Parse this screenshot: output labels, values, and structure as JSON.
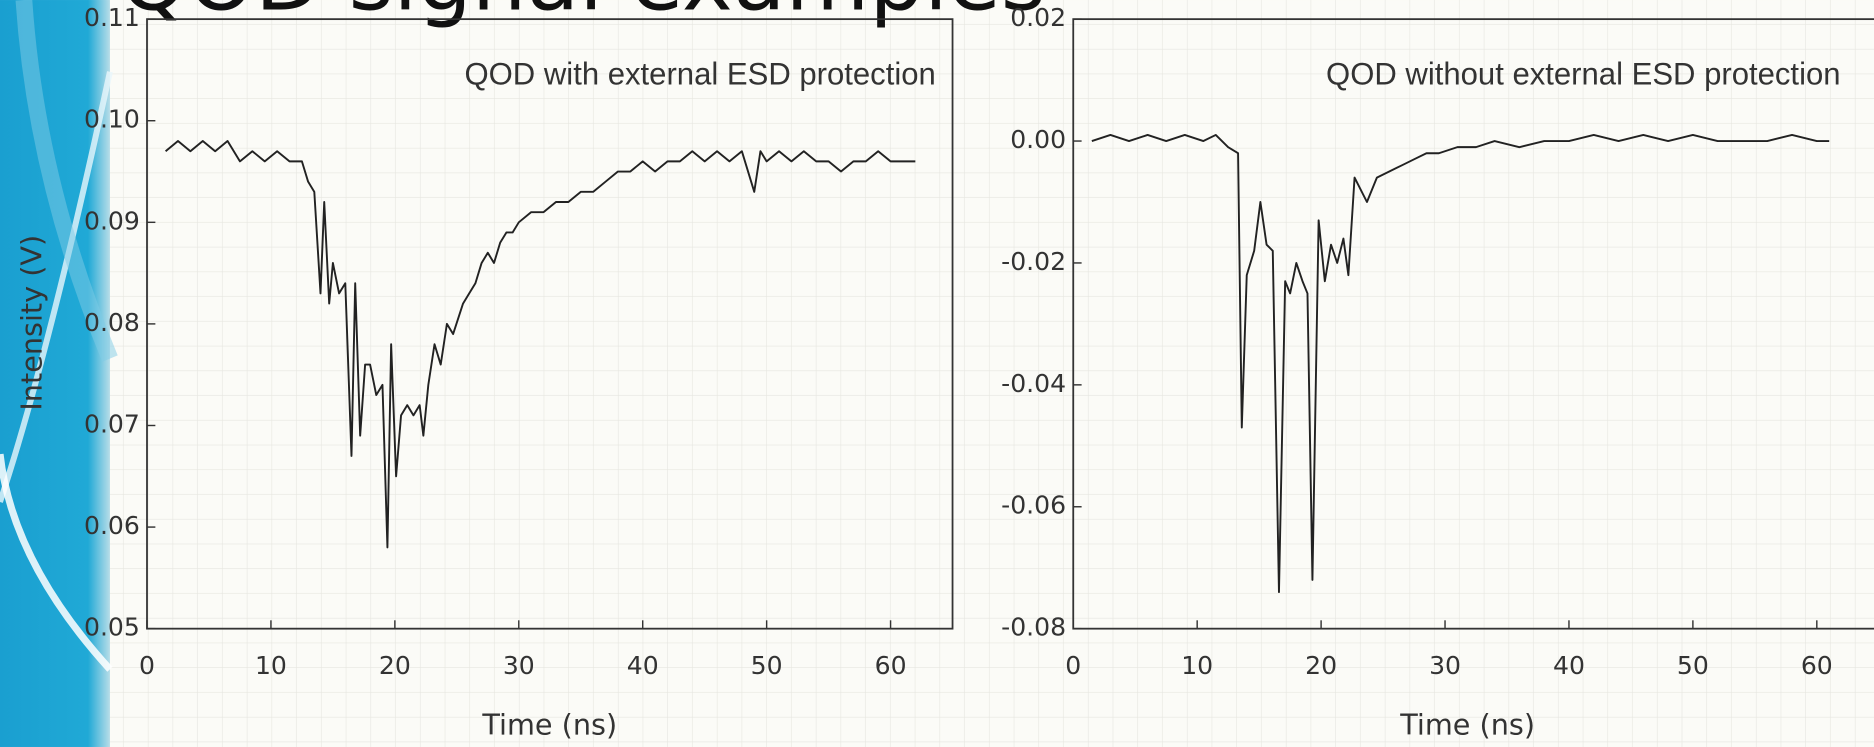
{
  "slide": {
    "title": "QOD signal examples"
  },
  "chart_data": [
    {
      "type": "line",
      "annotation": "QOD with external ESD protection",
      "x_label": "Time (ns)",
      "y_label": "Intensity (V)",
      "xlim": [
        0,
        65
      ],
      "xticks": [
        0,
        10,
        20,
        30,
        40,
        50,
        60
      ],
      "ylim": [
        0.05,
        0.11
      ],
      "yticks": [
        0.05,
        0.06,
        0.07,
        0.08,
        0.09,
        {
          "value": 0.1,
          "label": "0.10"
        },
        0.11
      ],
      "color": "#222222",
      "x": [
        1.5,
        2.5,
        3.5,
        4.5,
        5.5,
        6.5,
        7.5,
        8.5,
        9.5,
        10.5,
        11.5,
        12.5,
        13.0,
        13.5,
        14.0,
        14.3,
        14.7,
        15.0,
        15.5,
        16.0,
        16.5,
        16.8,
        17.2,
        17.6,
        18.0,
        18.5,
        19.0,
        19.4,
        19.7,
        20.1,
        20.5,
        21.0,
        21.5,
        22.0,
        22.3,
        22.7,
        23.2,
        23.7,
        24.2,
        24.7,
        25.5,
        26.0,
        26.5,
        27.0,
        27.5,
        28.0,
        28.5,
        29.0,
        29.5,
        30.0,
        31,
        32,
        33,
        34,
        35,
        36,
        37,
        38,
        39,
        40,
        41,
        42,
        43,
        44,
        45,
        46,
        47,
        48,
        49,
        49.5,
        50,
        51,
        52,
        53,
        54,
        55,
        56,
        57,
        58,
        59,
        60,
        61,
        62
      ],
      "values": [
        0.097,
        0.098,
        0.097,
        0.098,
        0.097,
        0.098,
        0.096,
        0.097,
        0.096,
        0.097,
        0.096,
        0.096,
        0.094,
        0.093,
        0.083,
        0.092,
        0.082,
        0.086,
        0.083,
        0.084,
        0.067,
        0.084,
        0.069,
        0.076,
        0.076,
        0.073,
        0.074,
        0.058,
        0.078,
        0.065,
        0.071,
        0.072,
        0.071,
        0.072,
        0.069,
        0.074,
        0.078,
        0.076,
        0.08,
        0.079,
        0.082,
        0.083,
        0.084,
        0.086,
        0.087,
        0.086,
        0.088,
        0.089,
        0.089,
        0.09,
        0.091,
        0.091,
        0.092,
        0.092,
        0.093,
        0.093,
        0.094,
        0.095,
        0.095,
        0.096,
        0.095,
        0.096,
        0.096,
        0.097,
        0.096,
        0.097,
        0.096,
        0.097,
        0.093,
        0.097,
        0.096,
        0.097,
        0.096,
        0.097,
        0.096,
        0.096,
        0.095,
        0.096,
        0.096,
        0.097,
        0.096,
        0.096,
        0.096
      ]
    },
    {
      "type": "line",
      "annotation": "QOD without external ESD protection",
      "x_label": "Time (ns)",
      "xlim": [
        0,
        65
      ],
      "xticks": [
        0,
        10,
        20,
        30,
        40,
        50,
        60
      ],
      "ylim": [
        -0.08,
        0.02
      ],
      "yticks": [
        -0.08,
        -0.06,
        -0.04,
        -0.02,
        {
          "value": 0,
          "label": "0.00"
        },
        0.02
      ],
      "color": "#222222",
      "x": [
        1.5,
        3,
        4.5,
        6,
        7.5,
        9,
        10.5,
        11.5,
        12.5,
        13.3,
        13.6,
        14.0,
        14.6,
        15.1,
        15.6,
        16.1,
        16.6,
        17.1,
        17.5,
        18.0,
        18.5,
        18.9,
        19.3,
        19.8,
        20.3,
        20.8,
        21.3,
        21.8,
        22.2,
        22.7,
        23.2,
        23.7,
        24.5,
        25.5,
        26.5,
        27.5,
        28.5,
        29.5,
        31,
        32.5,
        34,
        36,
        38,
        40,
        42,
        44,
        46,
        48,
        50,
        52,
        54,
        56,
        58,
        60,
        61
      ],
      "values": [
        0.0,
        0.001,
        0.0,
        0.001,
        0.0,
        0.001,
        0.0,
        0.001,
        -0.001,
        -0.002,
        -0.047,
        -0.022,
        -0.018,
        -0.01,
        -0.017,
        -0.018,
        -0.074,
        -0.023,
        -0.025,
        -0.02,
        -0.023,
        -0.025,
        -0.072,
        -0.013,
        -0.023,
        -0.017,
        -0.02,
        -0.016,
        -0.022,
        -0.006,
        -0.008,
        -0.01,
        -0.006,
        -0.005,
        -0.004,
        -0.003,
        -0.002,
        -0.002,
        -0.001,
        -0.001,
        0.0,
        -0.001,
        0.0,
        0.0,
        0.001,
        0.0,
        0.001,
        0.0,
        0.001,
        0.0,
        0.0,
        0.0,
        0.001,
        0.0,
        0.0
      ]
    }
  ]
}
